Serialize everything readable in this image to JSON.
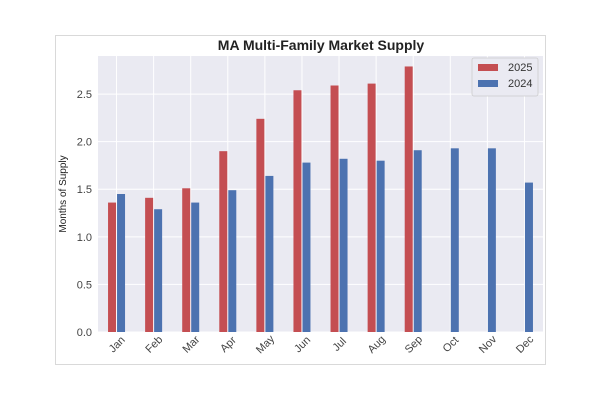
{
  "chart_data": {
    "type": "bar",
    "title": "MA Multi-Family Market Supply",
    "xlabel": "",
    "ylabel": "Months of Supply",
    "categories": [
      "Jan",
      "Feb",
      "Mar",
      "Apr",
      "May",
      "Jun",
      "Jul",
      "Aug",
      "Sep",
      "Oct",
      "Nov",
      "Dec"
    ],
    "series": [
      {
        "name": "2025",
        "color": "#c44e52",
        "values": [
          1.36,
          1.41,
          1.51,
          1.9,
          2.24,
          2.54,
          2.59,
          2.61,
          2.79,
          null,
          null,
          null
        ]
      },
      {
        "name": "2024",
        "color": "#4c72b0",
        "values": [
          1.45,
          1.29,
          1.36,
          1.49,
          1.64,
          1.78,
          1.82,
          1.8,
          1.91,
          1.93,
          1.93,
          1.57
        ]
      }
    ],
    "ylim": [
      0,
      2.9
    ],
    "yticks": [
      "0.0",
      "0.5",
      "1.0",
      "1.5",
      "2.0",
      "2.5"
    ],
    "grid": true,
    "legend_position": "top-right",
    "plot_background": "#eaeaf2"
  }
}
